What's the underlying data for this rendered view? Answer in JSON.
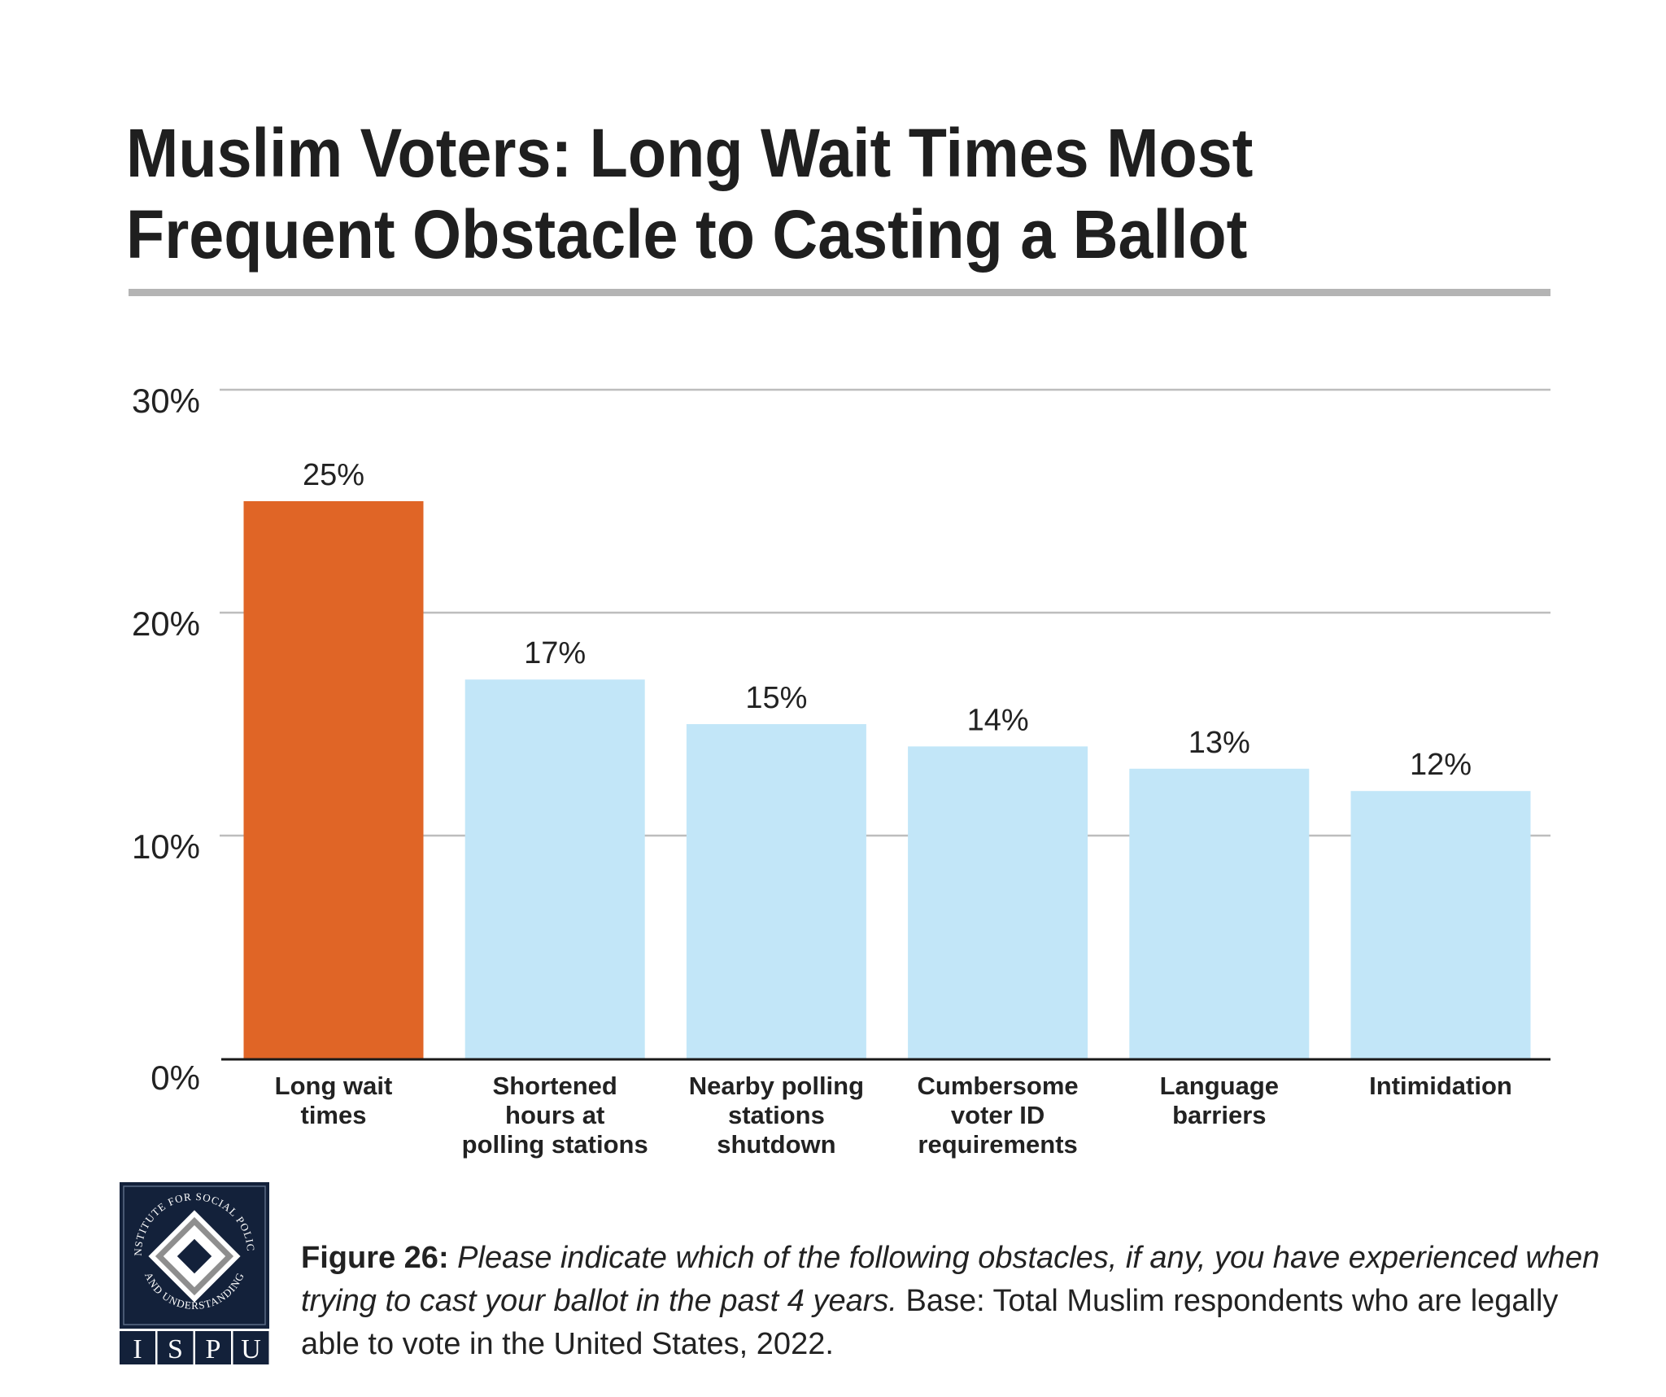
{
  "header": {
    "title_line1": "Muslim Voters: Long Wait Times Most",
    "title_line2": "Frequent Obstacle to Casting a Ballot"
  },
  "colors": {
    "highlight": "#e06526",
    "bar": "#c2e6f8",
    "gridline": "#bdbdbd",
    "axis": "#1a1a1a",
    "rule": "#b4b4b4",
    "logo_navy": "#13213a"
  },
  "chart_data": {
    "type": "bar",
    "title": "Muslim Voters: Long Wait Times Most Frequent Obstacle to Casting a Ballot",
    "xlabel": "",
    "ylabel": "",
    "ylim": [
      0,
      30
    ],
    "yticks": [
      0,
      10,
      20,
      30
    ],
    "ytick_labels": [
      "0%",
      "10%",
      "20%",
      "30%"
    ],
    "grid": true,
    "legend": "none",
    "categories": [
      "Long wait times",
      "Shortened hours at polling stations",
      "Nearby polling stations shutdown",
      "Cumbersome voter ID requirements",
      "Language barriers",
      "Intimidation"
    ],
    "category_lines": [
      [
        "Long wait",
        "times"
      ],
      [
        "Shortened",
        "hours at",
        "polling stations"
      ],
      [
        "Nearby polling",
        "stations",
        "shutdown"
      ],
      [
        "Cumbersome",
        "voter ID",
        "requirements"
      ],
      [
        "Language",
        "barriers"
      ],
      [
        "Intimidation"
      ]
    ],
    "values": [
      25,
      17,
      15,
      14,
      13,
      12
    ],
    "value_labels": [
      "25%",
      "17%",
      "15%",
      "14%",
      "13%",
      "12%"
    ],
    "highlighted_index": 0
  },
  "logo": {
    "ring_text_top": "INSTITUTE FOR SOCIAL POLICY",
    "ring_text_bottom": "AND UNDERSTANDING",
    "letters": [
      "I",
      "S",
      "P",
      "U"
    ]
  },
  "caption": {
    "figure_label": "Figure 26:",
    "question": "Please indicate which of the following obstacles, if any, you have experienced when trying to cast your ballot in the past 4 years.",
    "base": "Base: Total Muslim respondents who are legally able to vote in the United States, 2022."
  }
}
